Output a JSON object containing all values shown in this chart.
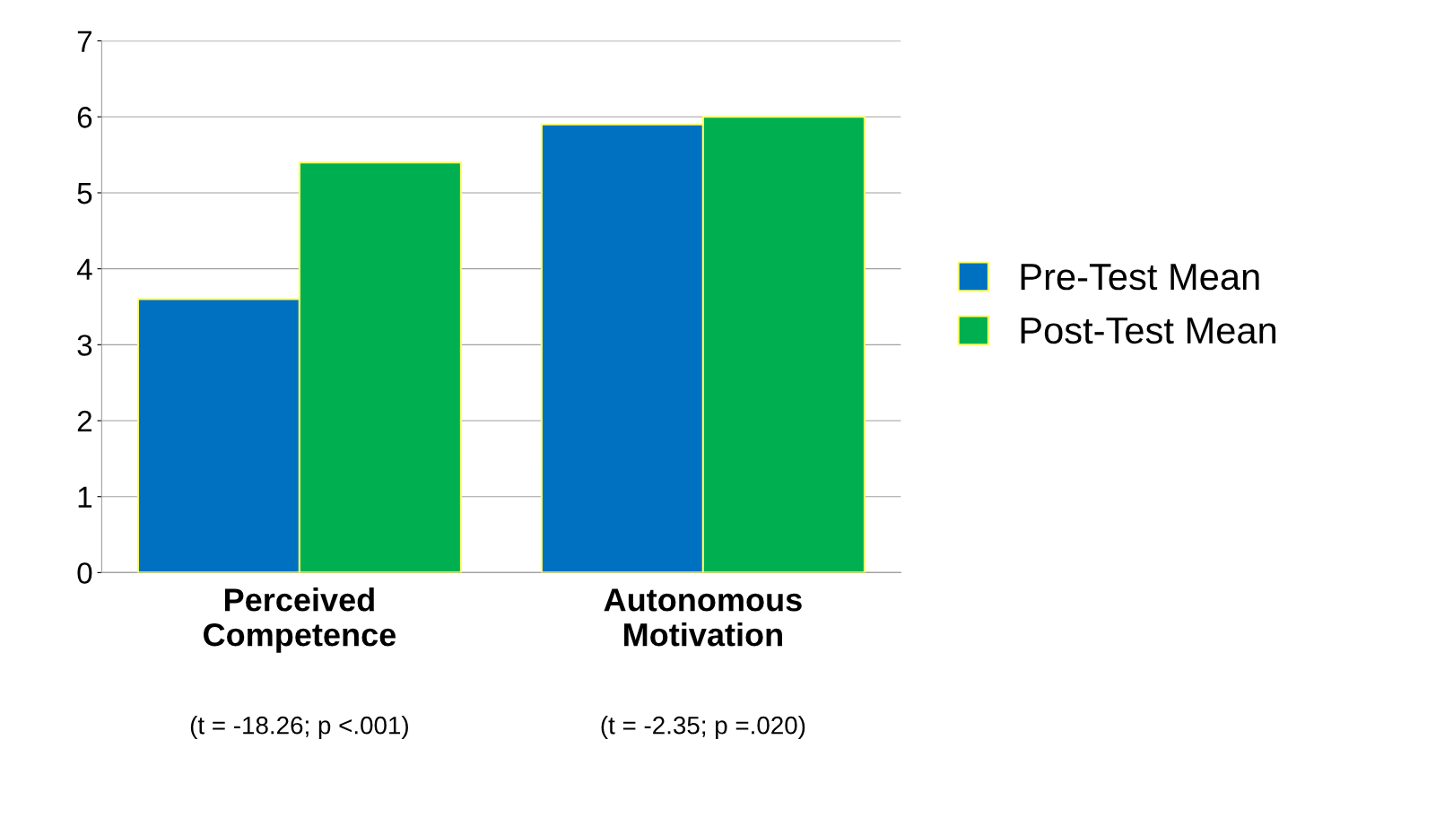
{
  "chart_data": {
    "type": "bar",
    "categories": [
      "Perceived\nCompetence",
      "Autonomous\nMotivation"
    ],
    "series": [
      {
        "name": "Pre-Test Mean",
        "color": "#0070c0",
        "values": [
          3.6,
          5.9
        ]
      },
      {
        "name": "Post-Test Mean",
        "color": "#00b050",
        "values": [
          5.4,
          6.0
        ]
      }
    ],
    "ylim": [
      0,
      7
    ],
    "yticks": [
      0,
      1,
      2,
      3,
      4,
      5,
      6,
      7
    ],
    "grid": "y",
    "legend": "right",
    "annotations": [
      "(t = -18.26; p <.001)",
      "(t = -2.35; p =.020)"
    ]
  }
}
